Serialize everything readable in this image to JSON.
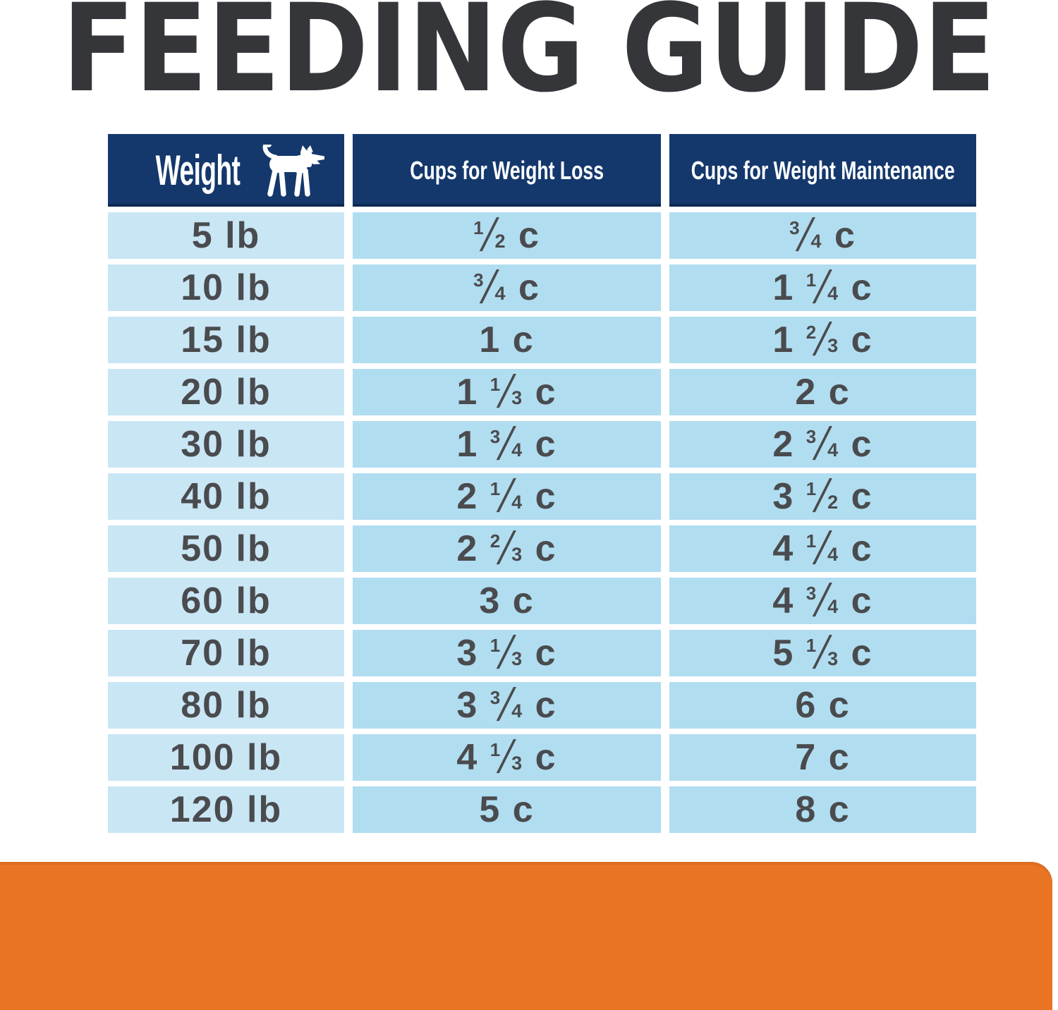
{
  "title": "FEEDING GUIDE",
  "colors": {
    "title_text": "#35363a",
    "header_bg": "#14386c",
    "header_text": "#ffffff",
    "weight_col_bg": "#c9e6f5",
    "value_col_bg": "#b1ddf0",
    "cell_text": "#4a4b4e",
    "footer_bar": "#e87424"
  },
  "table": {
    "headers": {
      "weight": "Weight",
      "loss": "Cups for Weight Loss",
      "maintenance": "Cups for Weight Maintenance"
    },
    "weight_header_icon": "dog-icon",
    "rows": [
      {
        "weight": "5 lb",
        "loss": "1/2 c",
        "maintenance": "3/4 c"
      },
      {
        "weight": "10 lb",
        "loss": "3/4 c",
        "maintenance": "1 1/4 c"
      },
      {
        "weight": "15 lb",
        "loss": "1 c",
        "maintenance": "1 2/3 c"
      },
      {
        "weight": "20 lb",
        "loss": "1 1/3 c",
        "maintenance": "2 c"
      },
      {
        "weight": "30 lb",
        "loss": "1 3/4 c",
        "maintenance": "2 3/4 c"
      },
      {
        "weight": "40 lb",
        "loss": "2 1/4 c",
        "maintenance": "3 1/2 c"
      },
      {
        "weight": "50 lb",
        "loss": "2 2/3 c",
        "maintenance": "4 1/4 c"
      },
      {
        "weight": "60 lb",
        "loss": "3 c",
        "maintenance": "4 3/4 c"
      },
      {
        "weight": "70 lb",
        "loss": "3 1/3 c",
        "maintenance": "5 1/3 c"
      },
      {
        "weight": "80 lb",
        "loss": "3 3/4 c",
        "maintenance": "6 c"
      },
      {
        "weight": "100 lb",
        "loss": "4 1/3 c",
        "maintenance": "7 c"
      },
      {
        "weight": "120 lb",
        "loss": "5 c",
        "maintenance": "8 c"
      }
    ]
  }
}
